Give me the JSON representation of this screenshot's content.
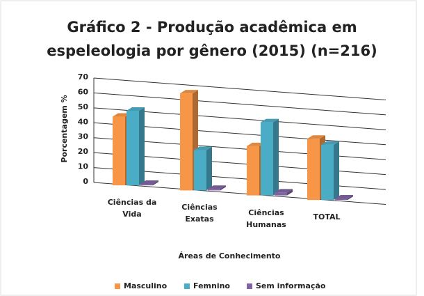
{
  "chart_data": {
    "type": "bar3d",
    "title": "Gráfico 2 - Produção acadêmica em espeleologia por gênero (2015) (n=216)",
    "x_label": "Áreas de Conhecimento",
    "y_label": "Porcentagem %",
    "categories": [
      "Ciências da Vida",
      "Ciências Exatas",
      "Ciências Humanas",
      "TOTAL"
    ],
    "series": [
      {
        "name": "Masculino",
        "color": "#f79646",
        "values": [
          46,
          65,
          33,
          41
        ]
      },
      {
        "name": "Femnino",
        "color": "#4bacc6",
        "values": [
          50,
          27,
          49,
          37
        ]
      },
      {
        "name": "Sem informação",
        "color": "#8064a2",
        "values": [
          1,
          1,
          2,
          1
        ]
      }
    ],
    "ylim": [
      0,
      70
    ],
    "yticks": [
      0,
      10,
      20,
      30,
      40,
      50,
      60,
      70
    ],
    "grid": true,
    "legend": "bottom"
  }
}
